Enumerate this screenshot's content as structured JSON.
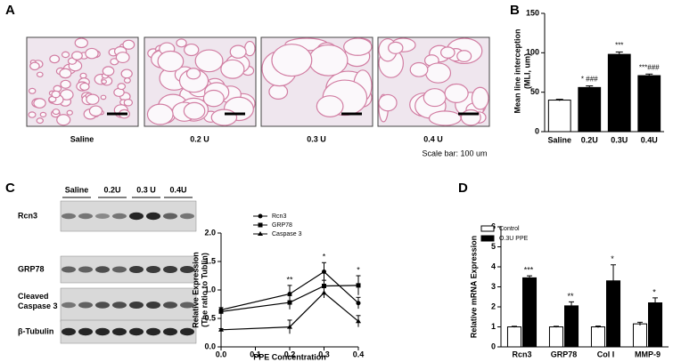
{
  "panels": [
    "A",
    "B",
    "C",
    "D"
  ],
  "panel_a": {
    "captions": [
      "Saline",
      "0.2 U",
      "0.3 U",
      "0.4 U"
    ],
    "scale_note": "Scale bar: 100 um"
  },
  "panel_c_blot": {
    "lanes": [
      "Saline",
      "0.2U",
      "0.3 U",
      "0.4U"
    ],
    "rows": [
      "Rcn3",
      "GRP78",
      "Cleaved Caspase 3",
      "β-Tubulin"
    ]
  },
  "chart_data": [
    {
      "type": "bar",
      "categories": [
        "Saline",
        "0.2U",
        "0.3U",
        "0.4U"
      ],
      "values": [
        40,
        56,
        98,
        71
      ],
      "errors": [
        1,
        2,
        3,
        2
      ],
      "colors": [
        "#ffffff",
        "#000000",
        "#000000",
        "#000000"
      ],
      "ylim": [
        0,
        150
      ],
      "yticks": [
        0,
        50,
        100,
        150
      ],
      "ylabel": [
        "Mean line interception",
        "(MLI, um)"
      ],
      "annotations": [
        null,
        "* ###",
        "***",
        "***###"
      ]
    },
    {
      "type": "line",
      "x": [
        0,
        0.2,
        0.3,
        0.4
      ],
      "xlim": [
        0,
        0.4
      ],
      "xticks": [
        {
          "value": 0,
          "label": "0.0"
        },
        0.1,
        0.2,
        0.3,
        0.4
      ],
      "ylim": [
        0,
        2
      ],
      "yticks": [
        {
          "value": 0,
          "label": "0.0"
        },
        0.5,
        {
          "value": 1,
          "label": "1.0"
        },
        1.5,
        {
          "value": 2,
          "label": "2.0"
        }
      ],
      "xlabel": "PPE Concentration",
      "ylabel": [
        "Relative  Expression",
        "(The ratio to Tublin)"
      ],
      "series": [
        {
          "name": "Rcn3",
          "color": "#000000",
          "marker": "circle",
          "values": [
            0.65,
            0.93,
            1.32,
            0.77
          ],
          "errors": [
            0.04,
            0.15,
            0.16,
            0.1
          ]
        },
        {
          "name": "GRP78",
          "color": "#000000",
          "marker": "square",
          "values": [
            0.62,
            0.78,
            1.07,
            1.08
          ],
          "errors": [
            0.03,
            0.12,
            0.1,
            0.17
          ]
        },
        {
          "name": "Caspase 3",
          "color": "#000000",
          "marker": "triangle",
          "values": [
            0.3,
            0.35,
            0.95,
            0.45
          ],
          "errors": [
            0.02,
            0.12,
            0.09,
            0.1
          ]
        }
      ],
      "annotations": [
        null,
        "**",
        "*",
        "*"
      ],
      "legend": "top-left"
    },
    {
      "type": "grouped-bar",
      "categories": [
        "Rcn3",
        "GRP78",
        "Col I",
        "MMP-9"
      ],
      "ylim": [
        0,
        6
      ],
      "yticks": [
        0,
        1,
        2,
        3,
        4,
        5,
        6
      ],
      "ylabel": "Relative mRNA Expression",
      "series": [
        {
          "name": "Control",
          "color": "#ffffff",
          "values": [
            1.0,
            1.0,
            1.0,
            1.15
          ],
          "errors": [
            0.03,
            0.03,
            0.04,
            0.08
          ]
        },
        {
          "name": "O.3U PPE",
          "color": "#000000",
          "values": [
            3.45,
            2.05,
            3.3,
            2.2
          ],
          "errors": [
            0.1,
            0.2,
            0.8,
            0.25
          ]
        }
      ],
      "annotations": [
        "***",
        "**",
        "*",
        "*"
      ],
      "legend": "top-left"
    }
  ]
}
